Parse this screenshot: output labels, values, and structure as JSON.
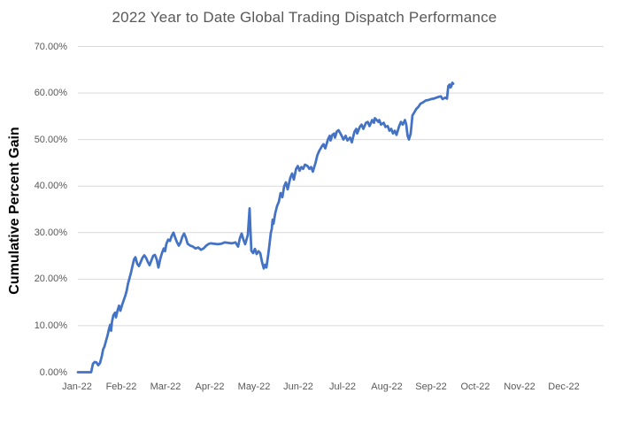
{
  "chart_data": {
    "type": "line",
    "title": "2022 Year to Date Global Trading Dispatch Performance",
    "ylabel": "Cumulative Percent Gain",
    "xlabel": "",
    "ylim": [
      0,
      70
    ],
    "x_range_months": [
      0,
      11.88
    ],
    "grid": "horizontal-only",
    "gridline_values": [
      10,
      20,
      30,
      40,
      50,
      60,
      70
    ],
    "legend": "none",
    "y_ticks": [
      {
        "value": 0,
        "label": "0.00%"
      },
      {
        "value": 10,
        "label": "10.00%"
      },
      {
        "value": 20,
        "label": "20.00%"
      },
      {
        "value": 30,
        "label": "30.00%"
      },
      {
        "value": 40,
        "label": "40.00%"
      },
      {
        "value": 50,
        "label": "50.00%"
      },
      {
        "value": 60,
        "label": "60.00%"
      },
      {
        "value": 70,
        "label": "70.00%"
      }
    ],
    "x_ticks": [
      {
        "month": 0,
        "label": "Jan-22"
      },
      {
        "month": 1,
        "label": "Feb-22"
      },
      {
        "month": 2,
        "label": "Mar-22"
      },
      {
        "month": 3,
        "label": "Apr-22"
      },
      {
        "month": 4,
        "label": "May-22"
      },
      {
        "month": 5,
        "label": "Jun-22"
      },
      {
        "month": 6,
        "label": "Jul-22"
      },
      {
        "month": 7,
        "label": "Aug-22"
      },
      {
        "month": 8,
        "label": "Sep-22"
      },
      {
        "month": 9,
        "label": "Oct-22"
      },
      {
        "month": 10,
        "label": "Nov-22"
      },
      {
        "month": 11,
        "label": "Dec-22"
      }
    ],
    "series": [
      {
        "name": "Cumulative Percent Gain",
        "color": "#4472C4",
        "points": [
          [
            0.0,
            0.0
          ],
          [
            0.08,
            0.0
          ],
          [
            0.16,
            0.0
          ],
          [
            0.24,
            0.0
          ],
          [
            0.3,
            0.0
          ],
          [
            0.34,
            1.8
          ],
          [
            0.38,
            2.2
          ],
          [
            0.42,
            2.1
          ],
          [
            0.46,
            1.5
          ],
          [
            0.5,
            2.0
          ],
          [
            0.54,
            3.4
          ],
          [
            0.57,
            4.9
          ],
          [
            0.6,
            5.5
          ],
          [
            0.64,
            6.9
          ],
          [
            0.67,
            7.9
          ],
          [
            0.7,
            9.2
          ],
          [
            0.73,
            10.2
          ],
          [
            0.75,
            8.9
          ],
          [
            0.77,
            10.8
          ],
          [
            0.8,
            12.2
          ],
          [
            0.84,
            12.8
          ],
          [
            0.86,
            11.8
          ],
          [
            0.9,
            13.4
          ],
          [
            0.93,
            14.3
          ],
          [
            0.96,
            13.2
          ],
          [
            1.0,
            14.5
          ],
          [
            1.04,
            15.6
          ],
          [
            1.07,
            16.4
          ],
          [
            1.1,
            17.4
          ],
          [
            1.13,
            18.9
          ],
          [
            1.16,
            20.0
          ],
          [
            1.2,
            21.4
          ],
          [
            1.24,
            23.1
          ],
          [
            1.27,
            24.3
          ],
          [
            1.3,
            24.7
          ],
          [
            1.34,
            23.3
          ],
          [
            1.38,
            22.8
          ],
          [
            1.42,
            23.7
          ],
          [
            1.46,
            24.6
          ],
          [
            1.5,
            25.1
          ],
          [
            1.54,
            24.6
          ],
          [
            1.58,
            23.7
          ],
          [
            1.62,
            23.0
          ],
          [
            1.66,
            24.0
          ],
          [
            1.7,
            25.0
          ],
          [
            1.74,
            25.2
          ],
          [
            1.78,
            24.3
          ],
          [
            1.82,
            22.5
          ],
          [
            1.86,
            24.3
          ],
          [
            1.9,
            25.6
          ],
          [
            1.94,
            26.6
          ],
          [
            1.97,
            26.0
          ],
          [
            2.0,
            27.6
          ],
          [
            2.04,
            28.5
          ],
          [
            2.08,
            28.2
          ],
          [
            2.12,
            29.3
          ],
          [
            2.16,
            30.0
          ],
          [
            2.2,
            28.9
          ],
          [
            2.24,
            27.9
          ],
          [
            2.28,
            27.2
          ],
          [
            2.32,
            27.9
          ],
          [
            2.36,
            29.1
          ],
          [
            2.4,
            29.8
          ],
          [
            2.44,
            28.9
          ],
          [
            2.48,
            27.6
          ],
          [
            2.54,
            27.2
          ],
          [
            2.6,
            27.0
          ],
          [
            2.66,
            26.6
          ],
          [
            2.72,
            26.8
          ],
          [
            2.78,
            26.3
          ],
          [
            2.84,
            26.6
          ],
          [
            2.9,
            27.2
          ],
          [
            2.96,
            27.6
          ],
          [
            3.0,
            27.7
          ],
          [
            3.08,
            27.6
          ],
          [
            3.16,
            27.5
          ],
          [
            3.24,
            27.6
          ],
          [
            3.32,
            27.9
          ],
          [
            3.4,
            27.8
          ],
          [
            3.48,
            27.7
          ],
          [
            3.56,
            27.9
          ],
          [
            3.62,
            27.0
          ],
          [
            3.66,
            28.8
          ],
          [
            3.7,
            29.8
          ],
          [
            3.74,
            28.5
          ],
          [
            3.78,
            27.5
          ],
          [
            3.84,
            29.5
          ],
          [
            3.88,
            35.2
          ],
          [
            3.9,
            30.4
          ],
          [
            3.92,
            26.1
          ],
          [
            3.96,
            25.6
          ],
          [
            4.0,
            26.5
          ],
          [
            4.04,
            25.4
          ],
          [
            4.08,
            26.0
          ],
          [
            4.12,
            25.6
          ],
          [
            4.16,
            23.7
          ],
          [
            4.2,
            22.3
          ],
          [
            4.23,
            23.1
          ],
          [
            4.26,
            22.5
          ],
          [
            4.3,
            25.2
          ],
          [
            4.33,
            27.5
          ],
          [
            4.36,
            30.0
          ],
          [
            4.38,
            30.7
          ],
          [
            4.4,
            32.8
          ],
          [
            4.42,
            31.9
          ],
          [
            4.46,
            34.2
          ],
          [
            4.5,
            35.7
          ],
          [
            4.54,
            36.6
          ],
          [
            4.58,
            38.5
          ],
          [
            4.62,
            37.6
          ],
          [
            4.66,
            39.9
          ],
          [
            4.7,
            40.8
          ],
          [
            4.74,
            39.3
          ],
          [
            4.8,
            41.8
          ],
          [
            4.84,
            42.7
          ],
          [
            4.88,
            41.4
          ],
          [
            4.93,
            43.7
          ],
          [
            4.97,
            44.3
          ],
          [
            5.01,
            43.3
          ],
          [
            5.05,
            44.1
          ],
          [
            5.09,
            43.7
          ],
          [
            5.13,
            44.6
          ],
          [
            5.19,
            44.3
          ],
          [
            5.23,
            43.7
          ],
          [
            5.27,
            44.1
          ],
          [
            5.31,
            43.1
          ],
          [
            5.37,
            45.0
          ],
          [
            5.41,
            46.6
          ],
          [
            5.45,
            47.5
          ],
          [
            5.51,
            48.5
          ],
          [
            5.55,
            49.0
          ],
          [
            5.59,
            48.1
          ],
          [
            5.65,
            50.0
          ],
          [
            5.69,
            50.8
          ],
          [
            5.71,
            49.8
          ],
          [
            5.75,
            51.0
          ],
          [
            5.79,
            51.3
          ],
          [
            5.81,
            50.4
          ],
          [
            5.85,
            51.7
          ],
          [
            5.89,
            52.0
          ],
          [
            5.95,
            51.0
          ],
          [
            6.0,
            50.0
          ],
          [
            6.05,
            50.8
          ],
          [
            6.09,
            49.8
          ],
          [
            6.15,
            50.4
          ],
          [
            6.19,
            49.4
          ],
          [
            6.25,
            51.7
          ],
          [
            6.29,
            52.3
          ],
          [
            6.31,
            51.3
          ],
          [
            6.37,
            52.7
          ],
          [
            6.41,
            53.2
          ],
          [
            6.45,
            52.3
          ],
          [
            6.51,
            53.6
          ],
          [
            6.55,
            53.8
          ],
          [
            6.59,
            52.9
          ],
          [
            6.65,
            54.2
          ],
          [
            6.69,
            53.6
          ],
          [
            6.71,
            54.6
          ],
          [
            6.79,
            53.8
          ],
          [
            6.81,
            54.2
          ],
          [
            6.85,
            53.2
          ],
          [
            6.91,
            53.6
          ],
          [
            6.95,
            52.7
          ],
          [
            7.0,
            52.9
          ],
          [
            7.04,
            51.9
          ],
          [
            7.08,
            52.3
          ],
          [
            7.12,
            51.3
          ],
          [
            7.16,
            51.9
          ],
          [
            7.2,
            51.0
          ],
          [
            7.26,
            52.9
          ],
          [
            7.3,
            53.8
          ],
          [
            7.34,
            53.2
          ],
          [
            7.39,
            54.2
          ],
          [
            7.42,
            53.2
          ],
          [
            7.45,
            50.8
          ],
          [
            7.48,
            50.0
          ],
          [
            7.52,
            51.3
          ],
          [
            7.56,
            55.2
          ],
          [
            7.6,
            55.8
          ],
          [
            7.64,
            56.5
          ],
          [
            7.7,
            57.1
          ],
          [
            7.74,
            57.7
          ],
          [
            7.8,
            58.0
          ],
          [
            7.86,
            58.4
          ],
          [
            7.92,
            58.5
          ],
          [
            7.98,
            58.7
          ],
          [
            8.04,
            58.8
          ],
          [
            8.1,
            59.0
          ],
          [
            8.16,
            59.2
          ],
          [
            8.2,
            59.3
          ],
          [
            8.24,
            58.7
          ],
          [
            8.3,
            59.0
          ],
          [
            8.34,
            58.8
          ],
          [
            8.37,
            61.5
          ],
          [
            8.4,
            61.8
          ],
          [
            8.42,
            61.2
          ],
          [
            8.44,
            61.5
          ],
          [
            8.46,
            62.2
          ],
          [
            8.48,
            62.0
          ]
        ]
      }
    ]
  },
  "colors": {
    "background": "#FFFFFF",
    "title_text": "#595959",
    "tick_text": "#595959",
    "y_axis_title_text": "#000000",
    "gridline": "#D9D9D9",
    "line": "#4472C4"
  }
}
